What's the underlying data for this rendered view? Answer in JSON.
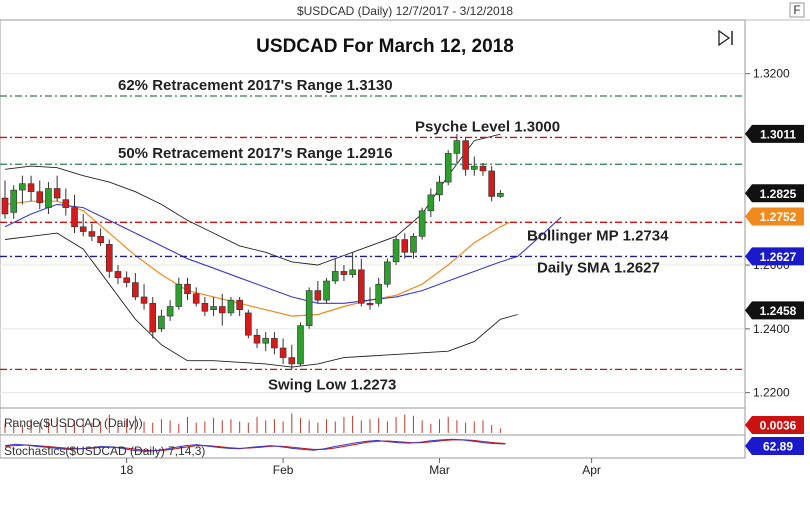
{
  "header": {
    "text": "$USDCAD (Daily)  12/7/2017 - 3/12/2018",
    "corner_button": "F"
  },
  "chart_data": {
    "type": "candlestick",
    "title": "USDCAD For March 12, 2018",
    "symbol": "$USDCAD (Daily)",
    "date_range": "12/7/2017 - 3/12/2018",
    "ylim": [
      1.2155,
      1.3365
    ],
    "y_ticks": [
      {
        "value": 1.32,
        "label": "1.3200"
      },
      {
        "value": 1.26,
        "label": "1.2600"
      },
      {
        "value": 1.24,
        "label": "1.2400"
      },
      {
        "value": 1.22,
        "label": "1.2200"
      }
    ],
    "x_ticks": [
      {
        "index": 28,
        "label": "18"
      },
      {
        "index": 64,
        "label": "Feb"
      },
      {
        "index": 100,
        "label": "Mar"
      },
      {
        "index": 135,
        "label": "Apr"
      }
    ],
    "x_range": [
      0,
      168
    ],
    "candles": [
      {
        "i": 0,
        "o": 1.281,
        "h": 1.2865,
        "l": 1.2745,
        "c": 1.276
      },
      {
        "i": 2,
        "o": 1.2765,
        "h": 1.285,
        "l": 1.2745,
        "c": 1.2835
      },
      {
        "i": 4,
        "o": 1.2835,
        "h": 1.288,
        "l": 1.279,
        "c": 1.2855
      },
      {
        "i": 6,
        "o": 1.2855,
        "h": 1.288,
        "l": 1.28,
        "c": 1.283
      },
      {
        "i": 8,
        "o": 1.283,
        "h": 1.2865,
        "l": 1.2775,
        "c": 1.2795
      },
      {
        "i": 10,
        "o": 1.278,
        "h": 1.286,
        "l": 1.276,
        "c": 1.284
      },
      {
        "i": 12,
        "o": 1.284,
        "h": 1.288,
        "l": 1.28,
        "c": 1.281
      },
      {
        "i": 14,
        "o": 1.2805,
        "h": 1.284,
        "l": 1.2755,
        "c": 1.278
      },
      {
        "i": 16,
        "o": 1.278,
        "h": 1.282,
        "l": 1.27,
        "c": 1.272
      },
      {
        "i": 18,
        "o": 1.272,
        "h": 1.276,
        "l": 1.269,
        "c": 1.2705
      },
      {
        "i": 20,
        "o": 1.2705,
        "h": 1.273,
        "l": 1.2675,
        "c": 1.269
      },
      {
        "i": 22,
        "o": 1.269,
        "h": 1.2715,
        "l": 1.266,
        "c": 1.267
      },
      {
        "i": 24,
        "o": 1.2665,
        "h": 1.268,
        "l": 1.256,
        "c": 1.258
      },
      {
        "i": 26,
        "o": 1.258,
        "h": 1.26,
        "l": 1.254,
        "c": 1.256
      },
      {
        "i": 28,
        "o": 1.256,
        "h": 1.258,
        "l": 1.253,
        "c": 1.2545
      },
      {
        "i": 30,
        "o": 1.2545,
        "h": 1.2575,
        "l": 1.249,
        "c": 1.25
      },
      {
        "i": 32,
        "o": 1.25,
        "h": 1.254,
        "l": 1.246,
        "c": 1.248
      },
      {
        "i": 34,
        "o": 1.248,
        "h": 1.25,
        "l": 1.237,
        "c": 1.239
      },
      {
        "i": 36,
        "o": 1.24,
        "h": 1.246,
        "l": 1.239,
        "c": 1.244
      },
      {
        "i": 38,
        "o": 1.244,
        "h": 1.249,
        "l": 1.2425,
        "c": 1.247
      },
      {
        "i": 40,
        "o": 1.247,
        "h": 1.256,
        "l": 1.246,
        "c": 1.254
      },
      {
        "i": 42,
        "o": 1.254,
        "h": 1.256,
        "l": 1.249,
        "c": 1.251
      },
      {
        "i": 44,
        "o": 1.251,
        "h": 1.253,
        "l": 1.247,
        "c": 1.248
      },
      {
        "i": 46,
        "o": 1.248,
        "h": 1.25,
        "l": 1.244,
        "c": 1.2455
      },
      {
        "i": 48,
        "o": 1.246,
        "h": 1.25,
        "l": 1.244,
        "c": 1.247
      },
      {
        "i": 50,
        "o": 1.247,
        "h": 1.251,
        "l": 1.241,
        "c": 1.245
      },
      {
        "i": 52,
        "o": 1.245,
        "h": 1.25,
        "l": 1.244,
        "c": 1.249
      },
      {
        "i": 54,
        "o": 1.249,
        "h": 1.25,
        "l": 1.244,
        "c": 1.246
      },
      {
        "i": 56,
        "o": 1.245,
        "h": 1.246,
        "l": 1.237,
        "c": 1.238
      },
      {
        "i": 58,
        "o": 1.238,
        "h": 1.24,
        "l": 1.234,
        "c": 1.2355
      },
      {
        "i": 60,
        "o": 1.2355,
        "h": 1.239,
        "l": 1.233,
        "c": 1.237
      },
      {
        "i": 62,
        "o": 1.237,
        "h": 1.239,
        "l": 1.232,
        "c": 1.234
      },
      {
        "i": 64,
        "o": 1.234,
        "h": 1.237,
        "l": 1.229,
        "c": 1.231
      },
      {
        "i": 66,
        "o": 1.231,
        "h": 1.235,
        "l": 1.2273,
        "c": 1.229
      },
      {
        "i": 68,
        "o": 1.229,
        "h": 1.242,
        "l": 1.2285,
        "c": 1.241
      },
      {
        "i": 70,
        "o": 1.241,
        "h": 1.253,
        "l": 1.24,
        "c": 1.252
      },
      {
        "i": 72,
        "o": 1.252,
        "h": 1.255,
        "l": 1.248,
        "c": 1.249
      },
      {
        "i": 74,
        "o": 1.249,
        "h": 1.256,
        "l": 1.248,
        "c": 1.255
      },
      {
        "i": 76,
        "o": 1.255,
        "h": 1.262,
        "l": 1.254,
        "c": 1.258
      },
      {
        "i": 78,
        "o": 1.258,
        "h": 1.26,
        "l": 1.255,
        "c": 1.257
      },
      {
        "i": 80,
        "o": 1.257,
        "h": 1.264,
        "l": 1.256,
        "c": 1.2585
      },
      {
        "i": 82,
        "o": 1.2585,
        "h": 1.262,
        "l": 1.247,
        "c": 1.248
      },
      {
        "i": 84,
        "o": 1.248,
        "h": 1.253,
        "l": 1.246,
        "c": 1.2475
      },
      {
        "i": 86,
        "o": 1.248,
        "h": 1.256,
        "l": 1.247,
        "c": 1.254
      },
      {
        "i": 88,
        "o": 1.254,
        "h": 1.262,
        "l": 1.253,
        "c": 1.261
      },
      {
        "i": 90,
        "o": 1.261,
        "h": 1.269,
        "l": 1.26,
        "c": 1.268
      },
      {
        "i": 92,
        "o": 1.268,
        "h": 1.27,
        "l": 1.262,
        "c": 1.264
      },
      {
        "i": 94,
        "o": 1.264,
        "h": 1.27,
        "l": 1.262,
        "c": 1.269
      },
      {
        "i": 96,
        "o": 1.269,
        "h": 1.278,
        "l": 1.268,
        "c": 1.277
      },
      {
        "i": 98,
        "o": 1.277,
        "h": 1.284,
        "l": 1.275,
        "c": 1.282
      },
      {
        "i": 100,
        "o": 1.282,
        "h": 1.288,
        "l": 1.28,
        "c": 1.286
      },
      {
        "i": 102,
        "o": 1.286,
        "h": 1.296,
        "l": 1.285,
        "c": 1.295
      },
      {
        "i": 104,
        "o": 1.295,
        "h": 1.3011,
        "l": 1.292,
        "c": 1.299
      },
      {
        "i": 106,
        "o": 1.299,
        "h": 1.3,
        "l": 1.288,
        "c": 1.29
      },
      {
        "i": 108,
        "o": 1.29,
        "h": 1.294,
        "l": 1.288,
        "c": 1.291
      },
      {
        "i": 110,
        "o": 1.291,
        "h": 1.292,
        "l": 1.288,
        "c": 1.2895
      },
      {
        "i": 112,
        "o": 1.2895,
        "h": 1.291,
        "l": 1.28,
        "c": 1.2815
      },
      {
        "i": 114,
        "o": 1.2815,
        "h": 1.2835,
        "l": 1.281,
        "c": 1.2825
      }
    ],
    "bollinger_upper": [
      [
        0,
        1.29
      ],
      [
        6,
        1.291
      ],
      [
        12,
        1.2905
      ],
      [
        18,
        1.288
      ],
      [
        24,
        1.286
      ],
      [
        30,
        1.283
      ],
      [
        36,
        1.279
      ],
      [
        42,
        1.274
      ],
      [
        48,
        1.27
      ],
      [
        54,
        1.266
      ],
      [
        60,
        1.264
      ],
      [
        66,
        1.261
      ],
      [
        72,
        1.26
      ],
      [
        78,
        1.263
      ],
      [
        84,
        1.266
      ],
      [
        90,
        1.269
      ],
      [
        96,
        1.276
      ],
      [
        102,
        1.288
      ],
      [
        108,
        1.299
      ],
      [
        114,
        1.301
      ]
    ],
    "bollinger_lower": [
      [
        0,
        1.268
      ],
      [
        6,
        1.269
      ],
      [
        12,
        1.27
      ],
      [
        18,
        1.265
      ],
      [
        24,
        1.254
      ],
      [
        30,
        1.243
      ],
      [
        36,
        1.235
      ],
      [
        42,
        1.23
      ],
      [
        48,
        1.23
      ],
      [
        54,
        1.2295
      ],
      [
        60,
        1.229
      ],
      [
        66,
        1.228
      ],
      [
        72,
        1.229
      ],
      [
        78,
        1.231
      ],
      [
        84,
        1.2315
      ],
      [
        90,
        1.232
      ],
      [
        96,
        1.2325
      ],
      [
        102,
        1.233
      ],
      [
        108,
        1.236
      ],
      [
        114,
        1.243
      ],
      [
        118,
        1.2445
      ]
    ],
    "bollinger_mid": [
      [
        0,
        1.279
      ],
      [
        6,
        1.28
      ],
      [
        12,
        1.28
      ],
      [
        18,
        1.277
      ],
      [
        24,
        1.27
      ],
      [
        30,
        1.263
      ],
      [
        36,
        1.257
      ],
      [
        42,
        1.252
      ],
      [
        48,
        1.25
      ],
      [
        54,
        1.248
      ],
      [
        60,
        1.246
      ],
      [
        66,
        1.244
      ],
      [
        72,
        1.2445
      ],
      [
        78,
        1.247
      ],
      [
        84,
        1.249
      ],
      [
        90,
        1.2505
      ],
      [
        96,
        1.254
      ],
      [
        102,
        1.26
      ],
      [
        108,
        1.267
      ],
      [
        114,
        1.272
      ],
      [
        116,
        1.2734
      ]
    ],
    "sma_50": [
      [
        0,
        1.272
      ],
      [
        6,
        1.276
      ],
      [
        12,
        1.279
      ],
      [
        18,
        1.278
      ],
      [
        24,
        1.274
      ],
      [
        30,
        1.27
      ],
      [
        36,
        1.266
      ],
      [
        42,
        1.262
      ],
      [
        48,
        1.259
      ],
      [
        54,
        1.256
      ],
      [
        60,
        1.253
      ],
      [
        66,
        1.25
      ],
      [
        72,
        1.248
      ],
      [
        78,
        1.248
      ],
      [
        84,
        1.249
      ],
      [
        90,
        1.25
      ],
      [
        96,
        1.252
      ],
      [
        102,
        1.255
      ],
      [
        108,
        1.258
      ],
      [
        114,
        1.261
      ],
      [
        118,
        1.2627
      ],
      [
        124,
        1.27
      ],
      [
        128,
        1.275
      ]
    ],
    "horizontal_levels": [
      {
        "value": 1.313,
        "label": "62% Retracement 2017's Range 1.3130",
        "color": "#2e7d54",
        "style": "dash-dot"
      },
      {
        "value": 1.3,
        "label": "Psyche Level 1.3000",
        "color": "#cc1111",
        "style": "dash-dot"
      },
      {
        "value": 1.2916,
        "label": "50% Retracement 2017's Range 1.2916",
        "color": "#2e7d54",
        "style": "dash-dot"
      },
      {
        "value": 1.2734,
        "label": "Bollinger MP 1.2734",
        "color": "#cc1111",
        "style": "dash-dot"
      },
      {
        "value": 1.2627,
        "label": "Daily SMA 1.2627",
        "color": "#1a1aa0",
        "style": "dash-dot"
      },
      {
        "value": 1.2273,
        "label": "Swing Low 1.2273",
        "color": "#cc1111",
        "style": "dash-dot"
      }
    ],
    "price_tags": [
      {
        "value": 1.3011,
        "label": "1.3011",
        "bg": "#111111",
        "fg": "#ffffff"
      },
      {
        "value": 1.2825,
        "label": "1.2825",
        "bg": "#111111",
        "fg": "#ffffff"
      },
      {
        "value": 1.2752,
        "label": "1.2752",
        "bg": "#f08a1c",
        "fg": "#ffffff"
      },
      {
        "value": 1.2627,
        "label": "1.2627",
        "bg": "#1a1acc",
        "fg": "#ffffff"
      },
      {
        "value": 1.2458,
        "label": "1.2458",
        "bg": "#111111",
        "fg": "#ffffff"
      }
    ],
    "range_panel": {
      "label": "Range($USDCAD (Daily))",
      "tag": "0.0036",
      "tag_bg": "#cc1111",
      "bars": [
        0.4,
        0.55,
        0.35,
        0.6,
        0.45,
        0.5,
        0.7,
        0.4,
        0.55,
        0.65,
        0.45,
        0.5,
        0.8,
        0.55,
        0.6,
        0.75,
        0.5,
        0.45,
        0.6,
        0.55,
        0.4,
        0.7,
        0.45,
        0.5,
        0.65,
        0.55,
        0.6,
        0.5,
        0.45,
        0.7,
        0.55,
        0.6,
        0.5,
        0.85,
        0.65,
        0.55,
        0.45,
        0.6,
        0.5,
        0.7,
        0.75,
        0.55,
        0.6,
        0.65,
        0.5,
        0.7,
        0.8,
        0.75,
        0.55,
        0.4,
        0.6,
        0.7,
        0.55,
        0.45,
        0.5,
        0.55,
        0.35,
        0.2
      ]
    },
    "stoch_panel": {
      "label": "Stochastics($USDCAD (Daily) 7,14,3)",
      "tag": "62.89",
      "tag_bg": "#1a1acc",
      "k": [
        55,
        62,
        58,
        50,
        45,
        40,
        35,
        38,
        42,
        50,
        48,
        40,
        30,
        25,
        28,
        35,
        45,
        55,
        60,
        52,
        45,
        40,
        38,
        45,
        50,
        55,
        48,
        40,
        35,
        30,
        38,
        50,
        60,
        70,
        78,
        82,
        75,
        70,
        68,
        72,
        80,
        85,
        88,
        84,
        78,
        70,
        65,
        63
      ],
      "d": [
        52,
        55,
        58,
        55,
        50,
        45,
        40,
        38,
        40,
        45,
        47,
        44,
        38,
        30,
        28,
        30,
        38,
        47,
        55,
        55,
        50,
        44,
        40,
        42,
        46,
        51,
        51,
        46,
        40,
        35,
        35,
        42,
        52,
        62,
        72,
        78,
        79,
        75,
        71,
        70,
        74,
        80,
        85,
        86,
        82,
        76,
        70,
        66
      ]
    }
  }
}
